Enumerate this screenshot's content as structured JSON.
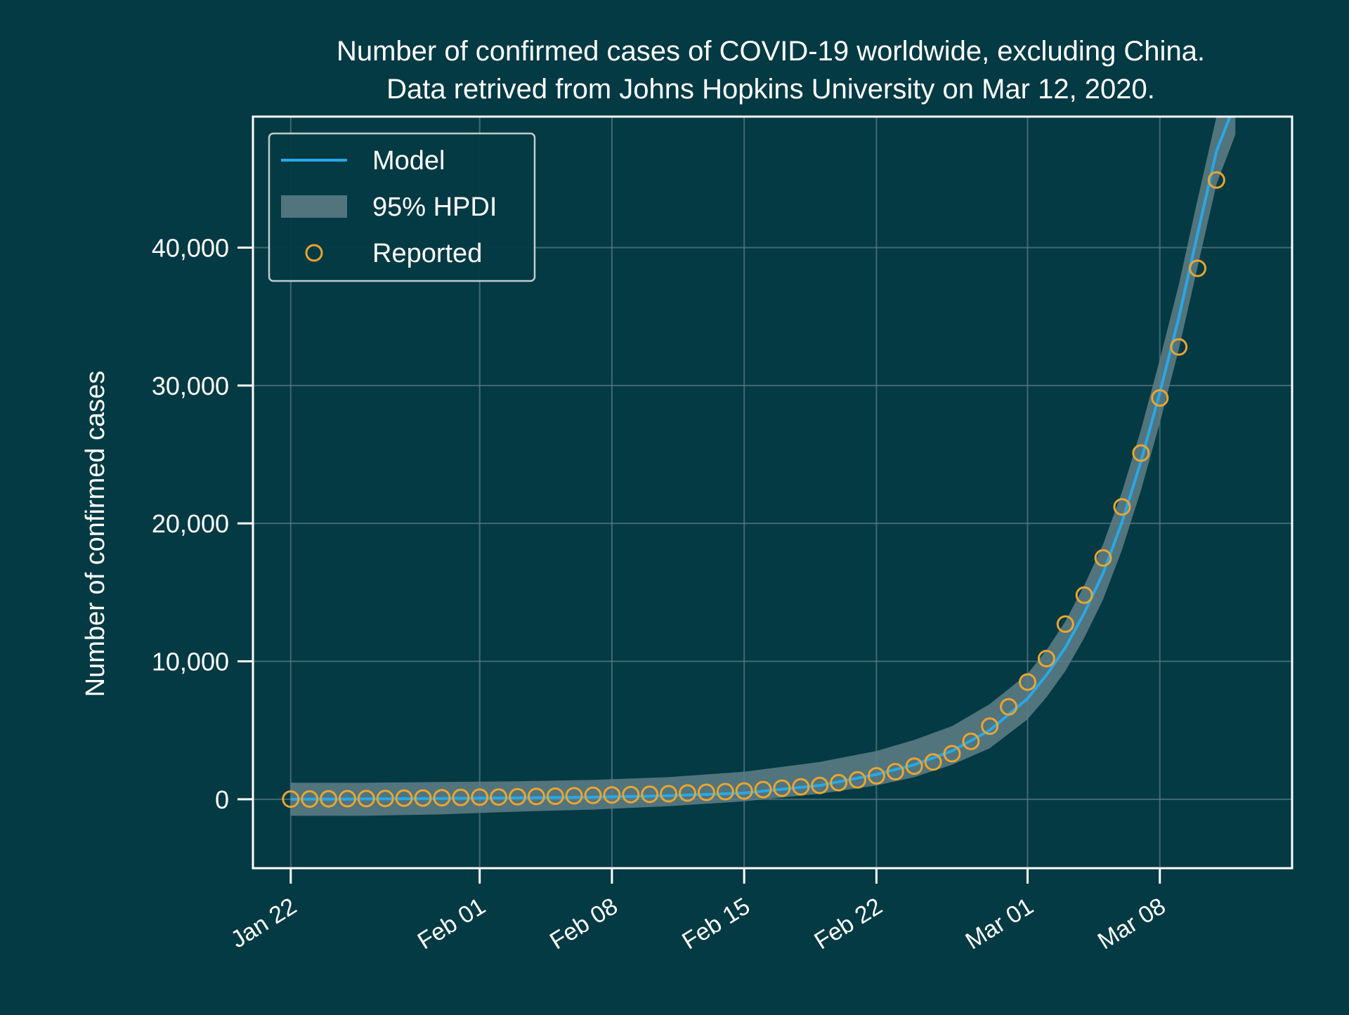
{
  "colors": {
    "background": "#033a44",
    "model_line": "#29a8e6",
    "hpdi_band": "#5f7f87",
    "reported_marker": "#e9a531",
    "axes": "#ffffff",
    "grid": "#5d7e85"
  },
  "chart_data": {
    "type": "line",
    "title": "Number of confirmed cases of COVID-19 worldwide, excluding China.",
    "subtitle": "Data retrived from Johns Hopkins University on Mar 12, 2020.",
    "xlabel": "",
    "ylabel": "Number of confirmed cases",
    "x_axis": {
      "type": "date",
      "range": [
        "2020-01-20",
        "2020-03-15"
      ],
      "ticks": [
        {
          "date": "2020-01-22",
          "label": "Jan 22"
        },
        {
          "date": "2020-02-01",
          "label": "Feb 01"
        },
        {
          "date": "2020-02-08",
          "label": "Feb 08"
        },
        {
          "date": "2020-02-15",
          "label": "Feb 15"
        },
        {
          "date": "2020-02-22",
          "label": "Feb 22"
        },
        {
          "date": "2020-03-01",
          "label": "Mar 01"
        },
        {
          "date": "2020-03-08",
          "label": "Mar 08"
        }
      ]
    },
    "y_axis": {
      "range": [
        -5000,
        49500
      ],
      "ticks": [
        {
          "value": 0,
          "label": "0"
        },
        {
          "value": 10000,
          "label": "10,000"
        },
        {
          "value": 20000,
          "label": "20,000"
        },
        {
          "value": 30000,
          "label": "30,000"
        },
        {
          "value": 40000,
          "label": "40,000"
        }
      ]
    },
    "grid": true,
    "legend": {
      "position": "top-left",
      "entries": [
        {
          "label": "Model",
          "kind": "line"
        },
        {
          "label": "95% HPDI",
          "kind": "band"
        },
        {
          "label": "Reported",
          "kind": "marker"
        }
      ]
    },
    "series": [
      {
        "name": "Model",
        "kind": "line",
        "x": [
          "2020-01-22",
          "2020-01-26",
          "2020-01-30",
          "2020-02-03",
          "2020-02-07",
          "2020-02-11",
          "2020-02-15",
          "2020-02-19",
          "2020-02-22",
          "2020-02-24",
          "2020-02-26",
          "2020-02-28",
          "2020-03-01",
          "2020-03-02",
          "2020-03-03",
          "2020-03-04",
          "2020-03-05",
          "2020-03-06",
          "2020-03-07",
          "2020-03-08",
          "2020-03-09",
          "2020-03-10",
          "2020-03-11",
          "2020-03-12"
        ],
        "y": [
          0,
          20,
          60,
          100,
          150,
          250,
          450,
          1000,
          1800,
          2500,
          3500,
          5000,
          7300,
          9000,
          11000,
          13500,
          16400,
          20100,
          24500,
          29500,
          34900,
          41000,
          47000,
          50500
        ]
      },
      {
        "name": "95% HPDI",
        "kind": "band",
        "x": [
          "2020-01-22",
          "2020-01-26",
          "2020-01-30",
          "2020-02-03",
          "2020-02-07",
          "2020-02-11",
          "2020-02-15",
          "2020-02-19",
          "2020-02-22",
          "2020-02-24",
          "2020-02-26",
          "2020-02-28",
          "2020-03-01",
          "2020-03-02",
          "2020-03-03",
          "2020-03-04",
          "2020-03-05",
          "2020-03-06",
          "2020-03-07",
          "2020-03-08",
          "2020-03-09",
          "2020-03-10",
          "2020-03-11",
          "2020-03-12"
        ],
        "lower": [
          -1200,
          -1200,
          -1100,
          -900,
          -750,
          -500,
          -150,
          400,
          1000,
          1600,
          2500,
          3700,
          5800,
          7400,
          9300,
          11700,
          14500,
          18100,
          22400,
          27300,
          32600,
          38600,
          44600,
          48200
        ],
        "upper": [
          1200,
          1200,
          1250,
          1300,
          1400,
          1600,
          2000,
          2700,
          3500,
          4300,
          5300,
          6900,
          9100,
          10800,
          12900,
          15500,
          18500,
          22300,
          26800,
          31900,
          37300,
          43500,
          49500,
          52800
        ]
      },
      {
        "name": "Reported",
        "kind": "scatter",
        "x": [
          "2020-01-22",
          "2020-01-23",
          "2020-01-24",
          "2020-01-25",
          "2020-01-26",
          "2020-01-27",
          "2020-01-28",
          "2020-01-29",
          "2020-01-30",
          "2020-01-31",
          "2020-02-01",
          "2020-02-02",
          "2020-02-03",
          "2020-02-04",
          "2020-02-05",
          "2020-02-06",
          "2020-02-07",
          "2020-02-08",
          "2020-02-09",
          "2020-02-10",
          "2020-02-11",
          "2020-02-12",
          "2020-02-13",
          "2020-02-14",
          "2020-02-15",
          "2020-02-16",
          "2020-02-17",
          "2020-02-18",
          "2020-02-19",
          "2020-02-20",
          "2020-02-21",
          "2020-02-22",
          "2020-02-23",
          "2020-02-24",
          "2020-02-25",
          "2020-02-26",
          "2020-02-27",
          "2020-02-28",
          "2020-02-29",
          "2020-03-01",
          "2020-03-02",
          "2020-03-03",
          "2020-03-04",
          "2020-03-05",
          "2020-03-06",
          "2020-03-07",
          "2020-03-08",
          "2020-03-09",
          "2020-03-10",
          "2020-03-11"
        ],
        "y": [
          10,
          15,
          30,
          40,
          50,
          60,
          80,
          90,
          110,
          130,
          150,
          160,
          180,
          200,
          220,
          250,
          280,
          310,
          340,
          360,
          400,
          450,
          500,
          550,
          600,
          700,
          800,
          900,
          1000,
          1200,
          1400,
          1700,
          2000,
          2400,
          2700,
          3300,
          4200,
          5300,
          6700,
          8500,
          10200,
          12700,
          14800,
          17500,
          21200,
          25100,
          29100,
          32800,
          38500,
          44900
        ]
      }
    ]
  }
}
